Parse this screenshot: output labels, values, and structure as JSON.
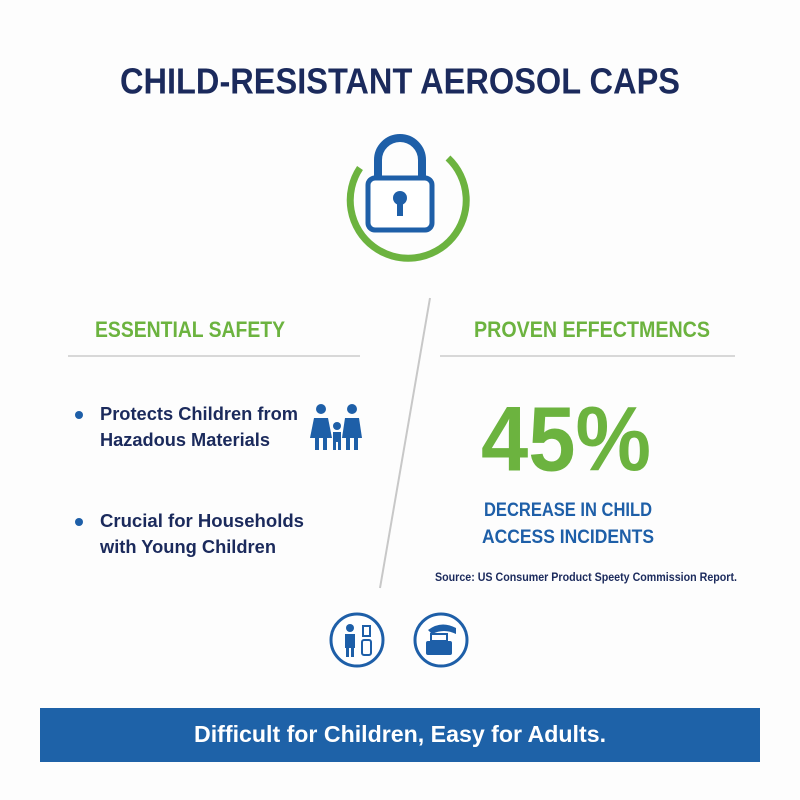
{
  "header": {
    "title": "CHILD-RESISTANT AEROSOL CAPS"
  },
  "left": {
    "heading": "ESSENTIAL SAFETY",
    "bullets": [
      [
        "Protects Children from",
        "Hazadous Materials"
      ],
      [
        "Crucial for Households",
        "with Young Children"
      ]
    ]
  },
  "right": {
    "heading": "PROVEN EFFECTMENCS",
    "stat": "45%",
    "stat_caption": [
      "DECREASE IN CHILD",
      "ACCESS INCIDENTS"
    ],
    "source": "Source: US Consumer Product Speety Commission Report."
  },
  "banner": {
    "text": "Difficult for Children, Easy for Adults."
  }
}
